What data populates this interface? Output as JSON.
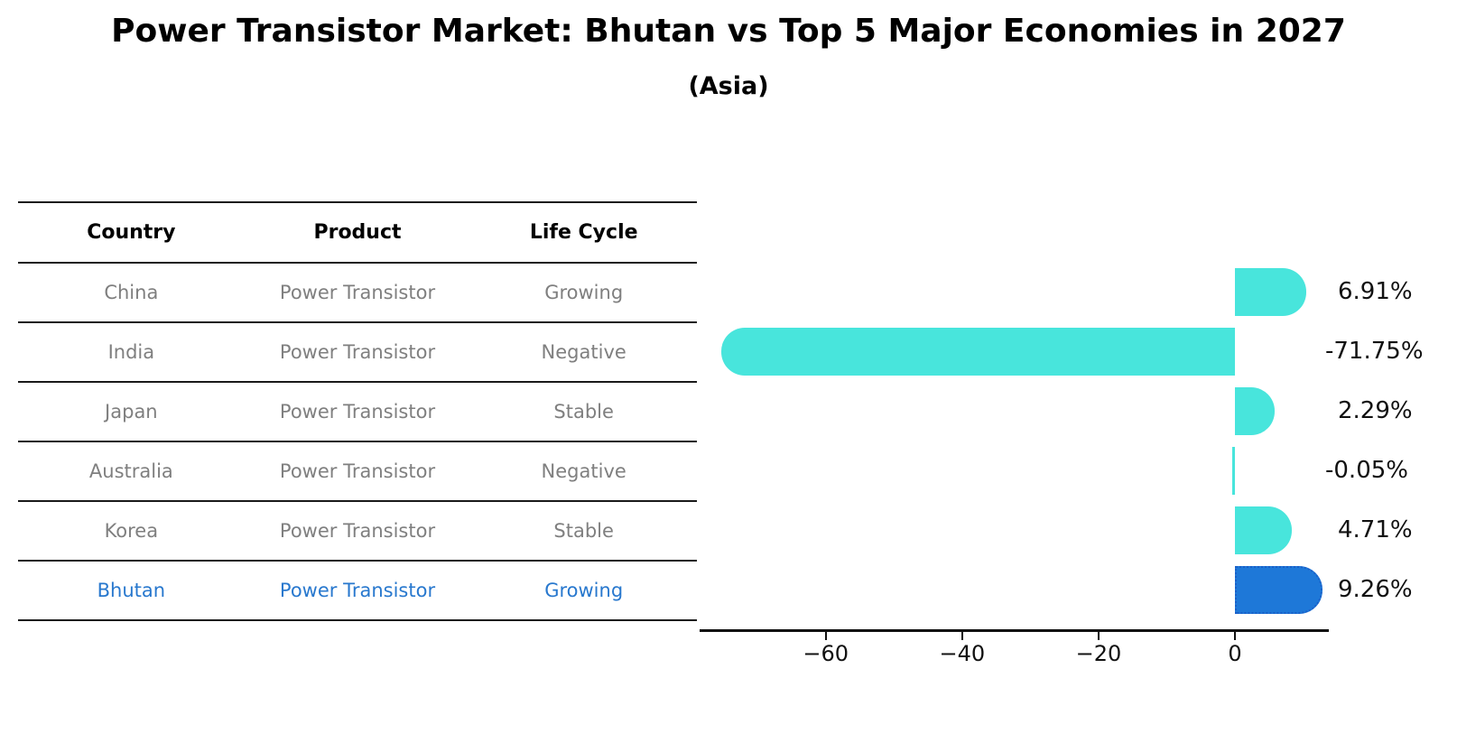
{
  "title": "Power Transistor Market: Bhutan vs Top 5 Major Economies in 2027",
  "subtitle": "(Asia)",
  "table": {
    "columns": [
      "Country",
      "Product",
      "Life Cycle"
    ],
    "rows": [
      {
        "country": "China",
        "product": "Power Transistor",
        "life_cycle": "Growing",
        "highlight": false
      },
      {
        "country": "India",
        "product": "Power Transistor",
        "life_cycle": "Negative",
        "highlight": false
      },
      {
        "country": "Japan",
        "product": "Power Transistor",
        "life_cycle": "Stable",
        "highlight": false
      },
      {
        "country": "Australia",
        "product": "Power Transistor",
        "life_cycle": "Negative",
        "highlight": false
      },
      {
        "country": "Korea",
        "product": "Power Transistor",
        "life_cycle": "Stable",
        "highlight": false
      },
      {
        "country": "Bhutan",
        "product": "Power Transistor",
        "life_cycle": "Growing",
        "highlight": true
      }
    ]
  },
  "chart_data": {
    "type": "bar",
    "orientation": "horizontal",
    "title": "Power Transistor Market: Bhutan vs Top 5 Major Economies in 2027",
    "subtitle": "(Asia)",
    "categories": [
      "China",
      "India",
      "Japan",
      "Australia",
      "Korea",
      "Bhutan"
    ],
    "values": [
      6.91,
      -71.75,
      2.29,
      -0.05,
      4.71,
      9.26
    ],
    "labels": [
      "6.91%",
      "-71.75%",
      "2.29%",
      "-0.05%",
      "4.71%",
      "9.26%"
    ],
    "xlabel": "",
    "ylabel": "",
    "xlim": [
      -78.5,
      13.5
    ],
    "xticks": [
      -60,
      -40,
      -20,
      0
    ],
    "xtick_labels": [
      "−60",
      "−40",
      "−20",
      "0"
    ],
    "grid": false,
    "legend": false,
    "highlight_index": 5
  },
  "colors": {
    "bar": "#48E5DC",
    "highlight_bar": "#1E78D8",
    "highlight_bar_border": "#1A5FC8",
    "highlight_text": "#2878CE",
    "row_text": "#7F7F7F",
    "axis": "#111111"
  }
}
